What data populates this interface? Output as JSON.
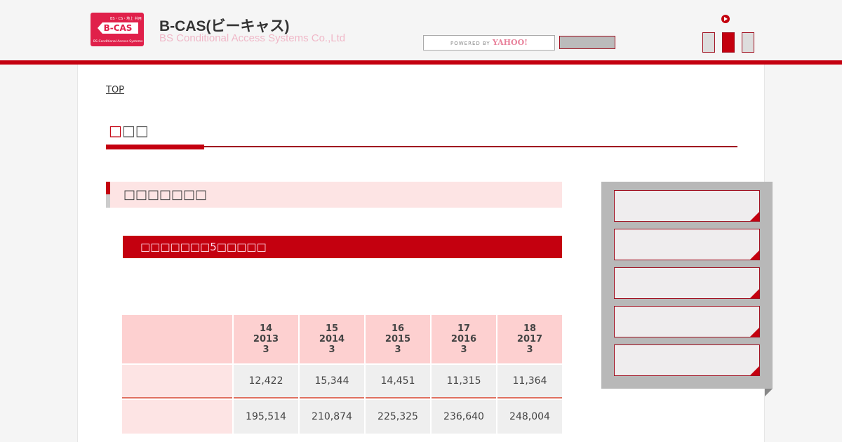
{
  "header": {
    "logo": {
      "top": "BS・CS・地上 共用",
      "main": "B-CAS",
      "bottom": "BS-Conditional Access Systems"
    },
    "title": "B-CAS(ビーキャス)",
    "subtitle": "BS Conditional Access Systems Co.,Ltd",
    "search": {
      "powered": "POWERED BY",
      "brand": "YAHOO!"
    }
  },
  "breadcrumb": {
    "top": "TOP"
  },
  "page_title": {
    "first": "□",
    "rest": "□□"
  },
  "section_title": "□□□□□□□",
  "subsection_title": "□□□□□□□5□□□□□",
  "table": {
    "headers": [
      [
        "14",
        "2013",
        "3"
      ],
      [
        "15",
        "2014",
        "3"
      ],
      [
        "16",
        "2015",
        "3"
      ],
      [
        "17",
        "2016",
        "3"
      ],
      [
        "18",
        "2017",
        "3"
      ]
    ],
    "rows": [
      [
        "12,422",
        "15,344",
        "14,451",
        "11,315",
        "11,364"
      ],
      [
        "195,514",
        "210,874",
        "225,325",
        "236,640",
        "248,004"
      ]
    ]
  },
  "colors": {
    "accent": "#c4000f",
    "header_cell": "#fdd0d0",
    "label_cell": "#fde4e4"
  }
}
